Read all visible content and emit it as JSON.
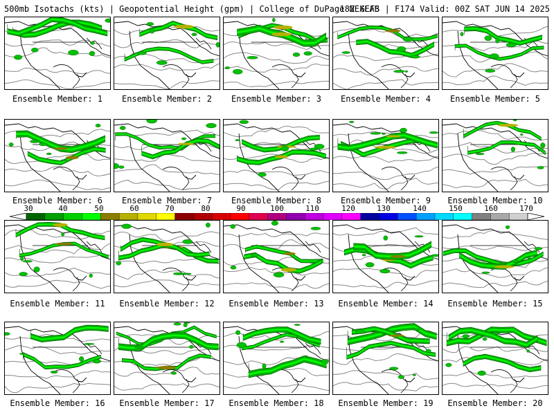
{
  "header": {
    "left": "500mb Isotachs (kts) | Geopotential Height (gpm) | College of DuPage NEXLAB",
    "right": "18Z GEFS | F174 Valid: 00Z SAT JUN 14 2025"
  },
  "members": [
    "Ensemble Member: 1",
    "Ensemble Member: 2",
    "Ensemble Member: 3",
    "Ensemble Member: 4",
    "Ensemble Member: 5",
    "Ensemble Member: 6",
    "Ensemble Member: 7",
    "Ensemble Member: 8",
    "Ensemble Member: 9",
    "Ensemble Member: 10",
    "Ensemble Member: 11",
    "Ensemble Member: 12",
    "Ensemble Member: 13",
    "Ensemble Member: 14",
    "Ensemble Member: 15",
    "Ensemble Member: 16",
    "Ensemble Member: 17",
    "Ensemble Member: 18",
    "Ensemble Member: 19",
    "Ensemble Member: 20"
  ],
  "colorbar": {
    "ticks": [
      "30",
      "40",
      "50",
      "60",
      "70",
      "80",
      "90",
      "100",
      "110",
      "120",
      "130",
      "140",
      "150",
      "160",
      "170"
    ],
    "colors": [
      "#006400",
      "#00a000",
      "#00d000",
      "#00ff00",
      "#8b7d00",
      "#b8b000",
      "#e0d800",
      "#ffff00",
      "#8b0000",
      "#b00000",
      "#d80000",
      "#ff0000",
      "#e00050",
      "#b00080",
      "#9000b0",
      "#c000e0",
      "#e000ff",
      "#ff00ff",
      "#0000a0",
      "#0000e0",
      "#0050ff",
      "#00a0ff",
      "#00d8ff",
      "#00ffff",
      "#808080",
      "#a8a8a8",
      "#d0d0d0"
    ]
  }
}
